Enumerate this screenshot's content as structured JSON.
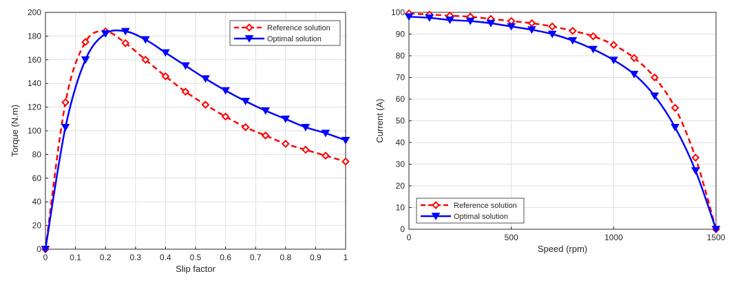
{
  "chart_data": [
    {
      "type": "line",
      "title": "",
      "xlabel": "Slip factor",
      "ylabel": "Torque (N.m)",
      "xlim": [
        0,
        1
      ],
      "ylim": [
        0,
        200
      ],
      "xticks": [
        0,
        0.1,
        0.2,
        0.3,
        0.4,
        0.5,
        0.6,
        0.7,
        0.8,
        0.9,
        1
      ],
      "xtick_labels": [
        "0",
        "0.1",
        "0.2",
        "0.3",
        "0.4",
        "0.5",
        "0.6",
        "0.7",
        "0.8",
        "0.9",
        "1"
      ],
      "yticks": [
        0,
        20,
        40,
        60,
        80,
        100,
        120,
        140,
        160,
        180,
        200
      ],
      "ytick_labels": [
        "0",
        "20",
        "40",
        "60",
        "80",
        "100",
        "120",
        "140",
        "160",
        "180",
        "200"
      ],
      "grid": true,
      "legend_position": "top-right",
      "series": [
        {
          "name": "Reference solution",
          "color": "#ff0000",
          "line_style": "dashed",
          "marker": "diamond",
          "x": [
            0,
            0.0667,
            0.1333,
            0.2,
            0.2667,
            0.3333,
            0.4,
            0.4667,
            0.5333,
            0.6,
            0.6667,
            0.7333,
            0.8,
            0.8667,
            0.9333,
            1
          ],
          "values": [
            0,
            124,
            175,
            184,
            174,
            160,
            146,
            133,
            122,
            112,
            103,
            96,
            89,
            84,
            79,
            74
          ]
        },
        {
          "name": "Optimal solution",
          "color": "#0000ff",
          "line_style": "solid",
          "marker": "triangle-down",
          "x": [
            0,
            0.0667,
            0.1333,
            0.2,
            0.2667,
            0.3333,
            0.4,
            0.4667,
            0.5333,
            0.6,
            0.6667,
            0.7333,
            0.8,
            0.8667,
            0.9333,
            1
          ],
          "values": [
            0,
            103,
            160,
            182,
            184,
            177,
            166,
            155,
            144,
            134,
            125,
            117,
            110,
            103,
            98,
            92
          ]
        }
      ]
    },
    {
      "type": "line",
      "title": "",
      "xlabel": "Speed (rpm)",
      "ylabel": "Current (A)",
      "xlim": [
        0,
        1500
      ],
      "ylim": [
        0,
        100
      ],
      "xticks": [
        0,
        500,
        1000,
        1500
      ],
      "xtick_labels": [
        "0",
        "500",
        "1000",
        "1500"
      ],
      "yticks": [
        0,
        10,
        20,
        30,
        40,
        50,
        60,
        70,
        80,
        90,
        100
      ],
      "ytick_labels": [
        "0",
        "10",
        "20",
        "30",
        "40",
        "50",
        "60",
        "70",
        "80",
        "90",
        "100"
      ],
      "grid": true,
      "legend_position": "bottom-left",
      "series": [
        {
          "name": "Reference solution",
          "color": "#ff0000",
          "line_style": "dashed",
          "marker": "diamond",
          "x": [
            0,
            100,
            200,
            300,
            400,
            500,
            600,
            700,
            800,
            900,
            1000,
            1100,
            1200,
            1300,
            1400,
            1500
          ],
          "values": [
            99.5,
            99,
            98.5,
            98,
            97,
            96,
            95,
            93.5,
            91.5,
            89,
            85,
            79,
            70,
            56,
            33,
            0
          ]
        },
        {
          "name": "Optimal solution",
          "color": "#0000ff",
          "line_style": "solid",
          "marker": "triangle-down",
          "x": [
            0,
            100,
            200,
            300,
            400,
            500,
            600,
            700,
            800,
            900,
            1000,
            1100,
            1200,
            1300,
            1400,
            1500
          ],
          "values": [
            98,
            97.5,
            96.5,
            96,
            95,
            93.5,
            92,
            90,
            87,
            83,
            78,
            71.5,
            61.5,
            47,
            27,
            0
          ]
        }
      ]
    }
  ]
}
